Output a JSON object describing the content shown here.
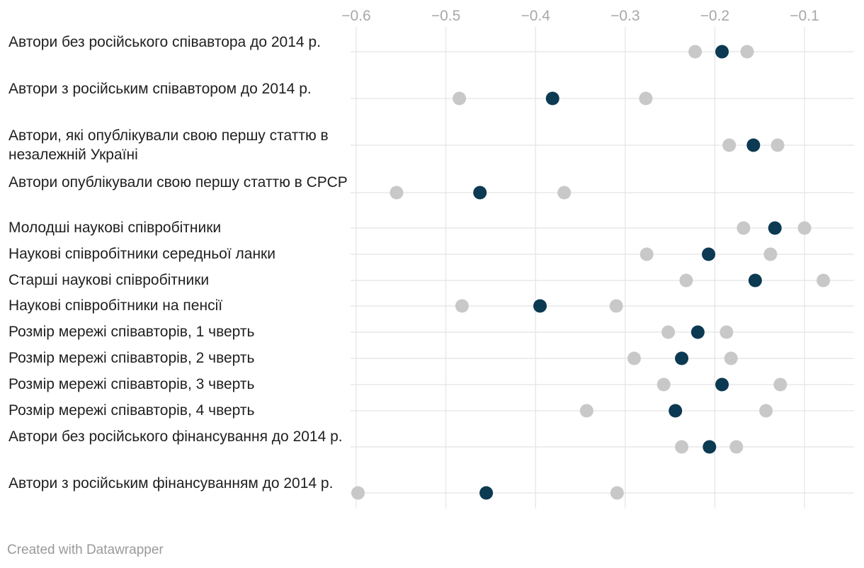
{
  "chart_data": {
    "type": "scatter",
    "subtype": "dot-range",
    "x_ticks": [
      -0.6,
      -0.5,
      -0.4,
      -0.3,
      -0.2,
      -0.1
    ],
    "x_tick_labels": [
      "−0.6",
      "−0.5",
      "−0.4",
      "−0.3",
      "−0.2",
      "−0.1"
    ],
    "xlim": [
      -0.62,
      -0.055
    ],
    "grid": true,
    "colors": {
      "estimate": "#0b3a52",
      "interval": "#c8c8c8",
      "grid": "#e4e4e4",
      "tick": "#a8a8a8"
    },
    "rows": [
      {
        "label": "Автори без російського співавтора до 2014 р.",
        "low": -0.222,
        "estimate": -0.192,
        "high": -0.164
      },
      {
        "label": "Автори з російським співавтором до 2014 р.",
        "low": -0.485,
        "estimate": -0.381,
        "high": -0.277
      },
      {
        "label": "Автори, які опублікували свою першу статтю в незалежній Україні",
        "low": -0.184,
        "estimate": -0.157,
        "high": -0.13
      },
      {
        "label": "Автори опублікували свою першу статтю в СРСР",
        "low": -0.555,
        "estimate": -0.462,
        "high": -0.368
      },
      {
        "label": "Молодші наукові співробітники",
        "low": -0.168,
        "estimate": -0.133,
        "high": -0.1
      },
      {
        "label": "Наукові співробітники середньої ланки",
        "low": -0.276,
        "estimate": -0.207,
        "high": -0.138
      },
      {
        "label": "Старші наукові співробітники",
        "low": -0.232,
        "estimate": -0.155,
        "high": -0.079
      },
      {
        "label": "Наукові співробітники на пенсії",
        "low": -0.482,
        "estimate": -0.395,
        "high": -0.31
      },
      {
        "label": "Розмір мережі співавторів, 1 чверть",
        "low": -0.252,
        "estimate": -0.219,
        "high": -0.187
      },
      {
        "label": "Розмір мережі співавторів, 2 чверть",
        "low": -0.29,
        "estimate": -0.237,
        "high": -0.182
      },
      {
        "label": "Розмір мережі співавторів, 3 чверть",
        "low": -0.257,
        "estimate": -0.192,
        "high": -0.127
      },
      {
        "label": "Розмір мережі співавторів, 4 чверть",
        "low": -0.343,
        "estimate": -0.244,
        "high": -0.143
      },
      {
        "label": "Автори без російського фінансування до 2014 р.",
        "low": -0.237,
        "estimate": -0.206,
        "high": -0.176
      },
      {
        "label": "Автори з російським фінансуванням до 2014 р.",
        "low": -0.598,
        "estimate": -0.455,
        "high": -0.309
      }
    ]
  },
  "footer": {
    "credit": "Created with Datawrapper"
  }
}
